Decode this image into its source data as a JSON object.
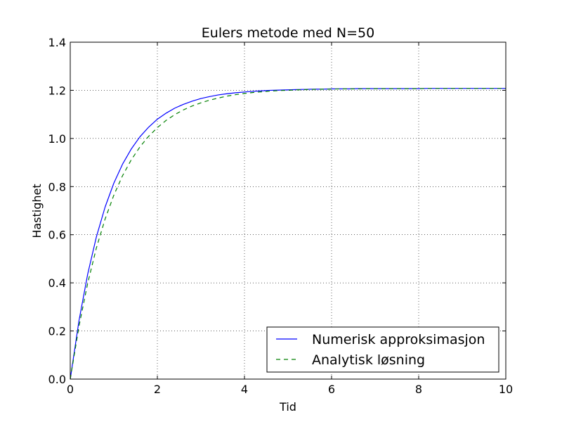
{
  "chart_data": {
    "type": "line",
    "title": "Eulers metode med N=50",
    "xlabel": "Tid",
    "ylabel": "Hastighet",
    "xlim": [
      0,
      10
    ],
    "ylim": [
      0,
      1.4
    ],
    "x_ticks": [
      0,
      2,
      4,
      6,
      8,
      10
    ],
    "y_ticks": [
      0.0,
      0.2,
      0.4,
      0.6,
      0.8,
      1.0,
      1.2,
      1.4
    ],
    "x_tick_labels": [
      "0",
      "2",
      "4",
      "6",
      "8",
      "10"
    ],
    "y_tick_labels": [
      "0.0",
      "0.2",
      "0.4",
      "0.6",
      "0.8",
      "1.0",
      "1.2",
      "1.4"
    ],
    "grid": true,
    "legend_position": "lower-right",
    "series": [
      {
        "name": "Numerisk approksimasjon",
        "color": "#0000ff",
        "style": "solid",
        "x": [
          0,
          0.2,
          0.4,
          0.6,
          0.8,
          1.0,
          1.2,
          1.4,
          1.6,
          1.8,
          2.0,
          2.2,
          2.4,
          2.6,
          2.8,
          3.0,
          3.2,
          3.4,
          3.6,
          3.8,
          4.0,
          4.2,
          4.4,
          4.6,
          4.8,
          5.0,
          5.2,
          5.4,
          5.6,
          5.8,
          6.0,
          6.2,
          6.4,
          6.6,
          6.8,
          7.0,
          7.2,
          7.4,
          7.6,
          7.8,
          8.0,
          8.2,
          8.4,
          8.6,
          8.8,
          9.0,
          9.2,
          9.4,
          9.6,
          9.8,
          10.0
        ],
        "values": [
          0.0,
          0.242,
          0.436,
          0.591,
          0.715,
          0.814,
          0.893,
          0.956,
          1.007,
          1.047,
          1.08,
          1.105,
          1.126,
          1.142,
          1.155,
          1.166,
          1.174,
          1.181,
          1.186,
          1.19,
          1.193,
          1.196,
          1.198,
          1.2,
          1.201,
          1.202,
          1.203,
          1.204,
          1.205,
          1.205,
          1.206,
          1.206,
          1.206,
          1.207,
          1.207,
          1.207,
          1.207,
          1.207,
          1.207,
          1.207,
          1.207,
          1.208,
          1.208,
          1.208,
          1.208,
          1.208,
          1.208,
          1.208,
          1.208,
          1.208,
          1.208
        ]
      },
      {
        "name": "Analytisk løsning",
        "color": "#008000",
        "style": "dashed",
        "x": [
          0,
          0.2,
          0.4,
          0.6,
          0.8,
          1.0,
          1.2,
          1.4,
          1.6,
          1.8,
          2.0,
          2.2,
          2.4,
          2.6,
          2.8,
          3.0,
          3.2,
          3.4,
          3.6,
          3.8,
          4.0,
          4.2,
          4.4,
          4.6,
          4.8,
          5.0,
          5.2,
          5.4,
          5.6,
          5.8,
          6.0,
          6.2,
          6.4,
          6.6,
          6.8,
          7.0,
          7.2,
          7.4,
          7.6,
          7.8,
          8.0,
          8.2,
          8.4,
          8.6,
          8.8,
          9.0,
          9.2,
          9.4,
          9.6,
          9.8,
          10.0
        ],
        "values": [
          0.0,
          0.219,
          0.398,
          0.545,
          0.665,
          0.764,
          0.845,
          0.911,
          0.965,
          1.009,
          1.045,
          1.075,
          1.099,
          1.119,
          1.135,
          1.148,
          1.159,
          1.168,
          1.176,
          1.182,
          1.187,
          1.191,
          1.194,
          1.197,
          1.199,
          1.2,
          1.202,
          1.203,
          1.204,
          1.205,
          1.205,
          1.206,
          1.206,
          1.206,
          1.207,
          1.207,
          1.207,
          1.207,
          1.207,
          1.207,
          1.207,
          1.208,
          1.208,
          1.208,
          1.208,
          1.208,
          1.208,
          1.208,
          1.208,
          1.208,
          1.208
        ]
      }
    ]
  }
}
